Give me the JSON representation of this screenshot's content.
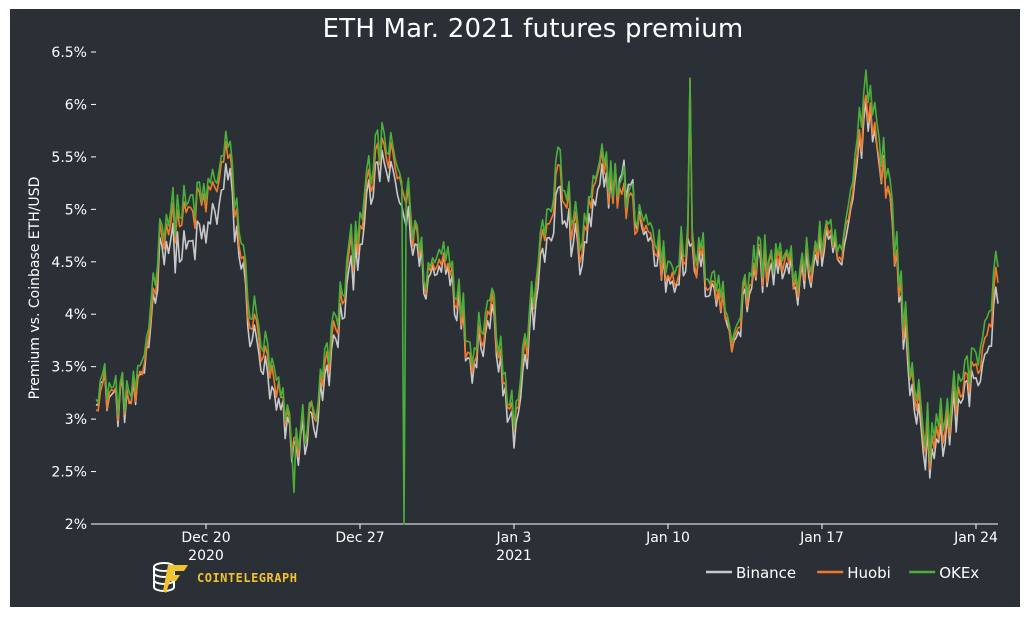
{
  "chart_data": {
    "type": "line",
    "title": "ETH Mar. 2021 futures premium",
    "ylabel": "Premium vs. Coinbase ETH/USD",
    "ylim": [
      2,
      6.5
    ],
    "yticks": [
      "2%",
      "2.5%",
      "3%",
      "3.5%",
      "4%",
      "4.5%",
      "5%",
      "5.5%",
      "6%",
      "6.5%"
    ],
    "xticks": [
      {
        "x": "2020-12-20",
        "label": "Dec 20",
        "sub": "2020"
      },
      {
        "x": "2020-12-27",
        "label": "Dec 27",
        "sub": ""
      },
      {
        "x": "2021-01-03",
        "label": "Jan 3",
        "sub": "2021"
      },
      {
        "x": "2021-01-10",
        "label": "Jan 10",
        "sub": ""
      },
      {
        "x": "2021-01-17",
        "label": "Jan 17",
        "sub": ""
      },
      {
        "x": "2021-01-24",
        "label": "Jan 24",
        "sub": ""
      }
    ],
    "xlim": [
      "2020-12-15",
      "2021-01-25"
    ],
    "grid": false,
    "legend_position": "bottom-right",
    "series": [
      {
        "name": "Binance",
        "color": "#c8c8c8",
        "x": [
          "2020-12-15",
          "2020-12-16",
          "2020-12-17",
          "2020-12-18",
          "2020-12-19",
          "2020-12-20",
          "2020-12-21",
          "2020-12-22",
          "2020-12-23",
          "2020-12-24",
          "2020-12-25",
          "2020-12-26",
          "2020-12-27",
          "2020-12-28",
          "2020-12-29",
          "2020-12-30",
          "2020-12-31",
          "2021-01-01",
          "2021-01-02",
          "2021-01-03",
          "2021-01-04",
          "2021-01-05",
          "2021-01-06",
          "2021-01-07",
          "2021-01-08",
          "2021-01-09",
          "2021-01-10",
          "2021-01-11",
          "2021-01-12",
          "2021-01-13",
          "2021-01-14",
          "2021-01-15",
          "2021-01-16",
          "2021-01-17",
          "2021-01-18",
          "2021-01-19",
          "2021-01-20",
          "2021-01-21",
          "2021-01-22",
          "2021-01-23",
          "2021-01-24",
          "2021-01-25"
        ],
        "values": [
          3.35,
          3.15,
          3.2,
          4.7,
          4.6,
          4.75,
          5.3,
          3.9,
          3.2,
          2.7,
          3.0,
          3.8,
          4.75,
          5.45,
          5.0,
          4.3,
          4.55,
          3.55,
          4.0,
          2.85,
          4.2,
          5.1,
          4.5,
          5.2,
          5.3,
          4.75,
          4.35,
          4.55,
          4.3,
          3.75,
          4.45,
          4.4,
          4.3,
          4.6,
          4.5,
          6.0,
          5.2,
          3.3,
          2.55,
          3.1,
          3.35,
          4.1
        ]
      },
      {
        "name": "Huobi",
        "color": "#f07a28",
        "x": [
          "2020-12-15",
          "2020-12-16",
          "2020-12-17",
          "2020-12-18",
          "2020-12-19",
          "2020-12-20",
          "2020-12-21",
          "2020-12-22",
          "2020-12-23",
          "2020-12-24",
          "2020-12-25",
          "2020-12-26",
          "2020-12-27",
          "2020-12-28",
          "2020-12-29",
          "2020-12-30",
          "2020-12-31",
          "2021-01-01",
          "2021-01-02",
          "2021-01-03",
          "2021-01-04",
          "2021-01-05",
          "2021-01-06",
          "2021-01-07",
          "2021-01-08",
          "2021-01-09",
          "2021-01-10",
          "2021-01-11",
          "2021-01-12",
          "2021-01-13",
          "2021-01-14",
          "2021-01-15",
          "2021-01-16",
          "2021-01-17",
          "2021-01-18",
          "2021-01-19",
          "2021-01-20",
          "2021-01-21",
          "2021-01-22",
          "2021-01-23",
          "2021-01-24",
          "2021-01-25"
        ],
        "values": [
          3.3,
          3.2,
          3.2,
          4.85,
          4.9,
          5.05,
          5.5,
          4.0,
          3.35,
          2.75,
          3.1,
          3.95,
          4.9,
          5.6,
          5.2,
          4.35,
          4.6,
          3.6,
          4.1,
          2.95,
          4.35,
          5.3,
          4.6,
          5.4,
          5.1,
          4.8,
          4.4,
          4.6,
          4.35,
          3.8,
          4.5,
          4.5,
          4.35,
          4.7,
          4.55,
          6.1,
          5.2,
          3.45,
          2.65,
          3.2,
          3.45,
          4.3
        ]
      },
      {
        "name": "OKEx",
        "color": "#4ab03a",
        "x": [
          "2020-12-15",
          "2020-12-16",
          "2020-12-17",
          "2020-12-18",
          "2020-12-19",
          "2020-12-20",
          "2020-12-21",
          "2020-12-22",
          "2020-12-23",
          "2020-12-24",
          "2020-12-25",
          "2020-12-26",
          "2020-12-27",
          "2020-12-28",
          "2020-12-29",
          "2020-12-30",
          "2020-12-31",
          "2021-01-01",
          "2021-01-02",
          "2021-01-03",
          "2021-01-04",
          "2021-01-05",
          "2021-01-06",
          "2021-01-07",
          "2021-01-08",
          "2021-01-09",
          "2021-01-10",
          "2021-01-11",
          "2021-01-12",
          "2021-01-13",
          "2021-01-14",
          "2021-01-15",
          "2021-01-16",
          "2021-01-17",
          "2021-01-18",
          "2021-01-19",
          "2021-01-20",
          "2021-01-21",
          "2021-01-22",
          "2021-01-23",
          "2021-01-24",
          "2021-01-25"
        ],
        "values": [
          3.4,
          3.25,
          3.3,
          4.95,
          5.0,
          5.15,
          5.6,
          4.1,
          3.45,
          2.8,
          3.15,
          4.05,
          5.0,
          5.7,
          5.25,
          4.4,
          4.7,
          3.7,
          4.2,
          3.0,
          4.4,
          5.45,
          4.7,
          5.45,
          5.2,
          4.9,
          4.5,
          4.7,
          4.45,
          3.85,
          4.6,
          4.55,
          4.4,
          4.75,
          4.6,
          6.3,
          5.35,
          3.55,
          2.75,
          3.3,
          3.6,
          4.45
        ]
      }
    ],
    "annotations": [
      {
        "series": "OKEx",
        "x": "2020-12-29",
        "value": 2.0,
        "note": "drop"
      },
      {
        "series": "OKEx",
        "x": "2021-01-11",
        "value": 6.25,
        "note": "spike"
      },
      {
        "series": "Huobi",
        "x": "2021-01-11",
        "value": 6.25,
        "note": "spike"
      },
      {
        "series": "OKEx",
        "x": "2020-12-24",
        "value": 2.3,
        "note": "dip"
      }
    ]
  },
  "brand": {
    "name": "COINTELEGRAPH",
    "color": "#f2c230",
    "icon": "cointelegraph-logo-icon"
  }
}
